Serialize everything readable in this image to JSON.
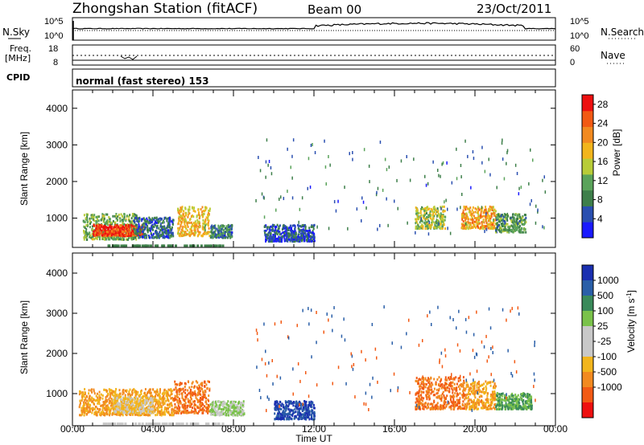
{
  "header": {
    "station": "Zhongshan Station (fitACF)",
    "beam": "Beam 00",
    "date": "23/Oct/2011",
    "mode_line": "normal (fast stereo) 153"
  },
  "strip_panels": {
    "nsky_label": "N.Sky",
    "nsearch_label": "N.Search",
    "freq_label": "Freq.",
    "freq_unit": "[MHz]",
    "nave_label": "Nave",
    "cpid_label": "CPID",
    "left_ticks_top": [
      "10^5",
      "10^0"
    ],
    "right_ticks_top": [
      "10^5",
      "10^0"
    ],
    "left_ticks_freq": [
      "18",
      "8"
    ],
    "right_ticks_nave": [
      "60",
      "0"
    ]
  },
  "colors": {
    "power_scale": [
      "#1a1aff",
      "#2a4fb0",
      "#3e7f4a",
      "#5aa35a",
      "#b8cc38",
      "#f2b51c",
      "#f28a20",
      "#f25a14",
      "#ee1010"
    ],
    "velocity_scale": [
      "#ee1010",
      "#f25a14",
      "#f28a20",
      "#f2b51c",
      "#c8c8c8",
      "#c8c8c8",
      "#7ac24a",
      "#3a8a5a",
      "#2a5fa8",
      "#1a2fb0"
    ]
  },
  "chart_data": [
    {
      "type": "heatmap",
      "title": "",
      "xlabel": "Time UT",
      "ylabel": "Slant Range [km]",
      "xlim": [
        "00:00",
        "24:00"
      ],
      "ylim": [
        200,
        4500
      ],
      "x_ticks": [
        "00:00",
        "04:00",
        "08:00",
        "12:00",
        "16:00",
        "20:00",
        "00:00"
      ],
      "y_ticks": [
        "1000",
        "2000",
        "3000",
        "4000"
      ],
      "colorbar": {
        "label": "Power [dB]",
        "ticks": [
          "4",
          "8",
          "12",
          "16",
          "20",
          "24",
          "28"
        ],
        "range": [
          0,
          30
        ]
      },
      "regions": [
        {
          "t0": 0.5,
          "t1": 3.2,
          "r0": 400,
          "r1": 1100,
          "value": 12
        },
        {
          "t0": 1.0,
          "t1": 3.5,
          "r0": 500,
          "r1": 800,
          "value": 26
        },
        {
          "t0": 3.0,
          "t1": 5.0,
          "r0": 450,
          "r1": 1000,
          "value": 6
        },
        {
          "t0": 5.2,
          "t1": 6.8,
          "r0": 500,
          "r1": 1300,
          "value": 18
        },
        {
          "t0": 6.8,
          "t1": 7.9,
          "r0": 450,
          "r1": 800,
          "value": 8
        },
        {
          "t0": 9.5,
          "t1": 12.0,
          "r0": 350,
          "r1": 800,
          "value": 5
        },
        {
          "t0": 17.0,
          "t1": 18.5,
          "r0": 700,
          "r1": 1300,
          "value": 14
        },
        {
          "t0": 19.3,
          "t1": 21.0,
          "r0": 700,
          "r1": 1300,
          "value": 20
        },
        {
          "t0": 21.0,
          "t1": 22.5,
          "r0": 600,
          "r1": 1100,
          "value": 11
        }
      ]
    },
    {
      "type": "heatmap",
      "title": "",
      "xlabel": "Time UT",
      "ylabel": "Slant Range [km]",
      "xlim": [
        "00:00",
        "24:00"
      ],
      "ylim": [
        200,
        4500
      ],
      "x_ticks": [
        "00:00",
        "04:00",
        "08:00",
        "12:00",
        "16:00",
        "20:00",
        "00:00"
      ],
      "y_ticks": [
        "1000",
        "2000",
        "3000",
        "4000"
      ],
      "colorbar": {
        "label": "Velocity [m s^-1]",
        "ticks": [
          "1000",
          "500",
          "100",
          "25",
          "-25",
          "-100",
          "-500",
          "-1000"
        ]
      },
      "regions": [
        {
          "t0": 0.3,
          "t1": 5.0,
          "r0": 450,
          "r1": 1100,
          "value": -100
        },
        {
          "t0": 2.0,
          "t1": 4.0,
          "r0": 500,
          "r1": 900,
          "value": -25
        },
        {
          "t0": 5.0,
          "t1": 6.8,
          "r0": 500,
          "r1": 1300,
          "value": -500
        },
        {
          "t0": 6.8,
          "t1": 8.5,
          "r0": 450,
          "r1": 800,
          "value": 25
        },
        {
          "t0": 10.0,
          "t1": 12.0,
          "r0": 350,
          "r1": 800,
          "value": 1000
        },
        {
          "t0": 17.0,
          "t1": 19.5,
          "r0": 600,
          "r1": 1400,
          "value": -500
        },
        {
          "t0": 19.5,
          "t1": 21.0,
          "r0": 600,
          "r1": 1300,
          "value": -100
        },
        {
          "t0": 21.0,
          "t1": 22.8,
          "r0": 600,
          "r1": 1000,
          "value": 100
        }
      ]
    }
  ]
}
